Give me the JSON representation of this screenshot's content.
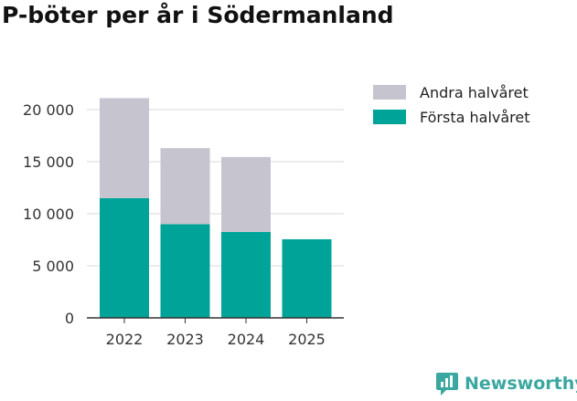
{
  "title": "P-böter per år i Södermanland",
  "brand": {
    "name": "Newsworthy",
    "color": "#3aa7a0"
  },
  "chart_data": {
    "type": "bar",
    "stacked": true,
    "title": "P-böter per år i Södermanland",
    "xlabel": "",
    "ylabel": "",
    "categories": [
      "2022",
      "2023",
      "2024",
      "2025"
    ],
    "series": [
      {
        "name": "Första halvåret",
        "color": "#00a398",
        "values": [
          11500,
          9000,
          8250,
          7550
        ]
      },
      {
        "name": "Andra halvåret",
        "color": "#c6c5cf",
        "values": [
          9600,
          7300,
          7200,
          0
        ]
      }
    ],
    "legend_order": [
      "Andra halvåret",
      "Första halvåret"
    ],
    "yticks": [
      0,
      5000,
      10000,
      15000,
      20000
    ],
    "ytick_labels": [
      "0",
      "5 000",
      "10 000",
      "15 000",
      "20 000"
    ],
    "ylim": [
      0,
      22000
    ],
    "grid": true,
    "legend_position": "top-right"
  }
}
